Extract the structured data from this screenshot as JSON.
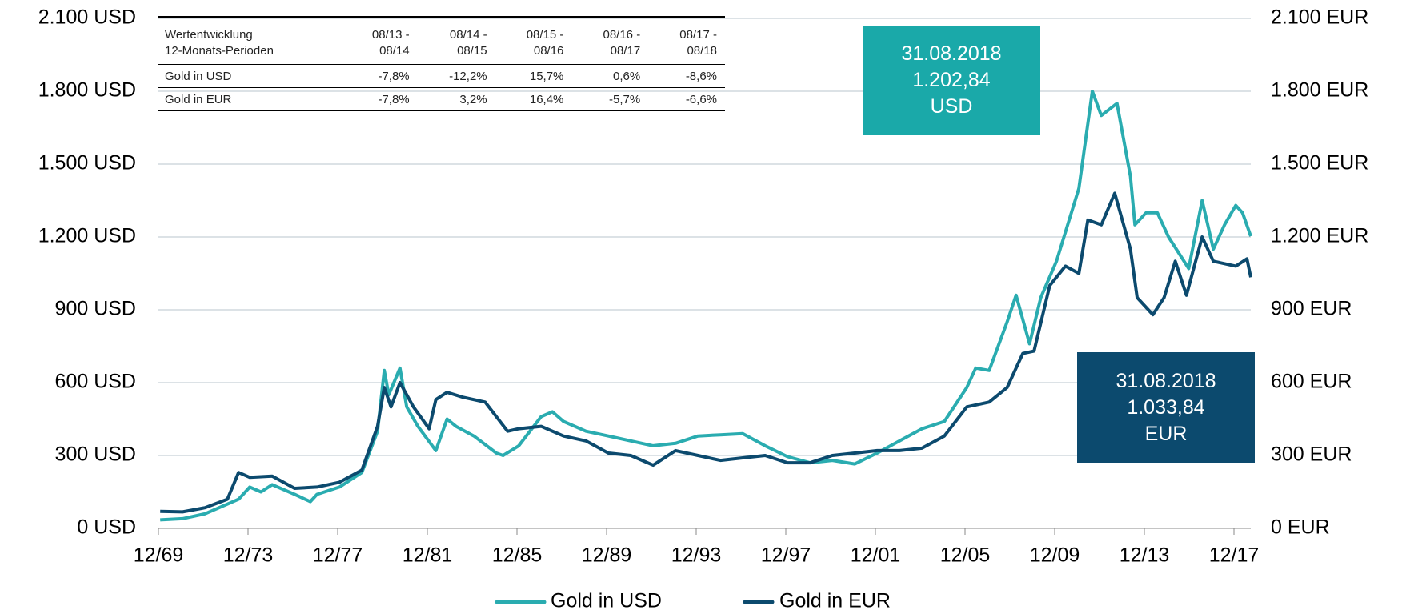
{
  "chart_data": {
    "type": "line",
    "xlim": [
      1969.92,
      2018.67
    ],
    "xticks": [
      {
        "value": 1969.92,
        "label": "12/69"
      },
      {
        "value": 1973.92,
        "label": "12/73"
      },
      {
        "value": 1977.92,
        "label": "12/77"
      },
      {
        "value": 1981.92,
        "label": "12/81"
      },
      {
        "value": 1985.92,
        "label": "12/85"
      },
      {
        "value": 1989.92,
        "label": "12/89"
      },
      {
        "value": 1993.92,
        "label": "12/93"
      },
      {
        "value": 1997.92,
        "label": "12/97"
      },
      {
        "value": 2001.92,
        "label": "12/01"
      },
      {
        "value": 2005.92,
        "label": "12/05"
      },
      {
        "value": 2009.92,
        "label": "12/09"
      },
      {
        "value": 2013.92,
        "label": "12/13"
      },
      {
        "value": 2017.92,
        "label": "12/17"
      }
    ],
    "ylim": [
      0,
      2100
    ],
    "yticks": [
      {
        "value": 0,
        "label": "0 USD"
      },
      {
        "value": 300,
        "label": "300 USD"
      },
      {
        "value": 600,
        "label": "600 USD"
      },
      {
        "value": 900,
        "label": "900 USD"
      },
      {
        "value": 1200,
        "label": "1.200 USD"
      },
      {
        "value": 1500,
        "label": "1.500 USD"
      },
      {
        "value": 1800,
        "label": "1.800 USD"
      },
      {
        "value": 2100,
        "label": "2.100 USD"
      }
    ],
    "y2lim": [
      0,
      2100
    ],
    "y2ticks": [
      {
        "value": 0,
        "label": "0 EUR"
      },
      {
        "value": 300,
        "label": "300 EUR"
      },
      {
        "value": 600,
        "label": "600 EUR"
      },
      {
        "value": 900,
        "label": "900 EUR"
      },
      {
        "value": 1200,
        "label": "1.200 EUR"
      },
      {
        "value": 1500,
        "label": "1.500 EUR"
      },
      {
        "value": 1800,
        "label": "1.800 EUR"
      },
      {
        "value": 2100,
        "label": "2.100 EUR"
      }
    ],
    "grid": true,
    "series": [
      {
        "name": "Gold in USD",
        "color": "#2aacb0",
        "x": [
          1970,
          1971,
          1972,
          1973,
          1973.5,
          1974,
          1974.5,
          1975,
          1976,
          1976.7,
          1977,
          1978,
          1979,
          1979.7,
          1980,
          1980.2,
          1980.7,
          1981,
          1981.5,
          1982.3,
          1982.8,
          1983.2,
          1984,
          1985,
          1985.3,
          1986,
          1987,
          1987.5,
          1988,
          1989,
          1990,
          1991,
          1992,
          1993,
          1994,
          1995,
          1996,
          1997,
          1998,
          1999,
          2000,
          2001,
          2002,
          2003,
          2004,
          2005,
          2006,
          2006.4,
          2007,
          2007.8,
          2008.2,
          2008.8,
          2009.3,
          2010,
          2010.5,
          2011,
          2011.6,
          2012,
          2012.7,
          2013.3,
          2013.5,
          2014,
          2014.5,
          2015,
          2015.9,
          2016.5,
          2017,
          2017.5,
          2018,
          2018.3,
          2018.67
        ],
        "values": [
          35,
          40,
          60,
          100,
          120,
          170,
          150,
          180,
          140,
          110,
          140,
          170,
          230,
          400,
          650,
          550,
          660,
          500,
          420,
          320,
          450,
          420,
          380,
          310,
          300,
          340,
          460,
          480,
          440,
          400,
          380,
          360,
          340,
          350,
          380,
          385,
          390,
          340,
          295,
          270,
          280,
          265,
          310,
          360,
          410,
          440,
          580,
          660,
          650,
          850,
          960,
          760,
          950,
          1100,
          1250,
          1400,
          1800,
          1700,
          1750,
          1450,
          1250,
          1300,
          1300,
          1200,
          1070,
          1350,
          1150,
          1250,
          1330,
          1300,
          1202.84
        ]
      },
      {
        "name": "Gold in EUR",
        "color": "#0c4a6e",
        "axis": "y2",
        "x": [
          1970,
          1971,
          1972,
          1973,
          1973.5,
          1974,
          1975,
          1976,
          1977,
          1978,
          1979,
          1979.7,
          1980,
          1980.3,
          1980.7,
          1981.3,
          1982,
          1982.3,
          1982.8,
          1983.5,
          1984.5,
          1985.5,
          1986,
          1987,
          1988,
          1989,
          1990,
          1991,
          1992,
          1993,
          1994,
          1995,
          1996,
          1997,
          1998,
          1999,
          2000,
          2001,
          2002,
          2003,
          2004,
          2005,
          2006,
          2007,
          2007.8,
          2008.5,
          2009,
          2009.7,
          2010.4,
          2011,
          2011.4,
          2012,
          2012.6,
          2013.3,
          2013.6,
          2014.3,
          2014.8,
          2015.3,
          2015.8,
          2016.5,
          2017,
          2018,
          2018.5,
          2018.67
        ],
        "values": [
          70,
          68,
          85,
          120,
          230,
          210,
          215,
          165,
          170,
          190,
          240,
          420,
          580,
          500,
          600,
          500,
          410,
          530,
          560,
          540,
          520,
          400,
          410,
          420,
          380,
          360,
          310,
          300,
          260,
          320,
          300,
          280,
          290,
          300,
          270,
          270,
          300,
          310,
          320,
          320,
          330,
          380,
          500,
          520,
          580,
          720,
          730,
          1000,
          1080,
          1050,
          1270,
          1250,
          1380,
          1150,
          950,
          880,
          950,
          1100,
          960,
          1200,
          1100,
          1080,
          1110,
          1033.84
        ]
      }
    ],
    "annotations": [
      {
        "lines": [
          "31.08.2018",
          "1.202,84",
          "USD"
        ],
        "color": "#1aa9a9"
      },
      {
        "lines": [
          "31.08.2018",
          "1.033,84",
          "EUR"
        ],
        "color": "#0c4a6e"
      }
    ]
  },
  "table": {
    "header": [
      [
        "Wertentwicklung",
        "12-Monats-Perioden"
      ],
      [
        "08/13 -",
        "08/14"
      ],
      [
        "08/14 -",
        "08/15"
      ],
      [
        "08/15 -",
        "08/16"
      ],
      [
        "08/16 -",
        "08/17"
      ],
      [
        "08/17 -",
        "08/18"
      ]
    ],
    "rows": [
      [
        "Gold in USD",
        "-7,8%",
        "-12,2%",
        "15,7%",
        "0,6%",
        "-8,6%"
      ],
      [
        "Gold in EUR",
        "-7,8%",
        "3,2%",
        "16,4%",
        "-5,7%",
        "-6,6%"
      ]
    ]
  }
}
